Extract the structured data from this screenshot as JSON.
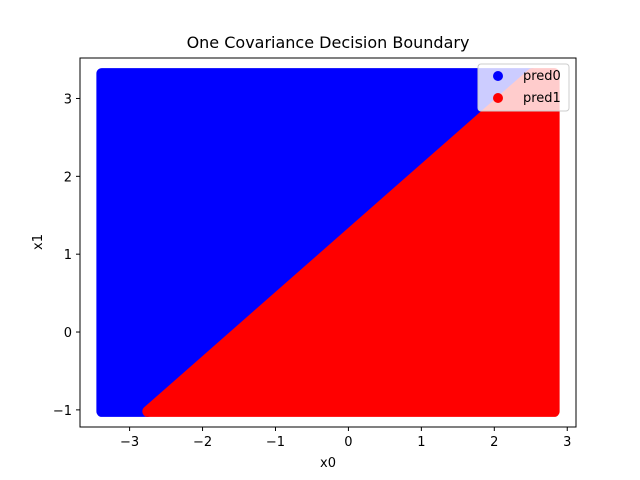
{
  "chart_data": {
    "type": "scatter",
    "title": "One Covariance Decision Boundary",
    "xlabel": "x0",
    "ylabel": "x1",
    "xlim": [
      -3.68,
      3.12
    ],
    "ylim": [
      -1.22,
      3.52
    ],
    "xticks": [
      -3,
      -2,
      -1,
      0,
      1,
      2,
      3
    ],
    "yticks": [
      -1,
      0,
      1,
      2,
      3
    ],
    "xtick_labels": [
      "−3",
      "−2",
      "−1",
      "0",
      "1",
      "2",
      "3"
    ],
    "ytick_labels": [
      "−1",
      "0",
      "1",
      "2",
      "3"
    ],
    "grid_extent": {
      "x": [
        -3.38,
        2.82
      ],
      "y": [
        -1.02,
        3.32
      ]
    },
    "decision_boundary": {
      "x": [
        -2.75,
        2.52
      ],
      "y": [
        -1.02,
        3.32
      ]
    },
    "legend_position": "top-right",
    "series": [
      {
        "name": "pred0",
        "color": "#0000ff",
        "region": "above-left of boundary"
      },
      {
        "name": "pred1",
        "color": "#ff0000",
        "region": "below-right of boundary"
      }
    ]
  }
}
